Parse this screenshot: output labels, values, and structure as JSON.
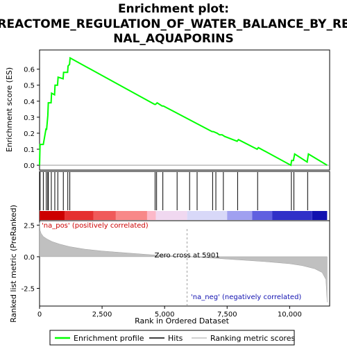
{
  "title_line1": "Enrichment plot:",
  "title_line2": "REACTOME_REGULATION_OF_WATER_BALANCE_BY_RE",
  "title_line3": "NAL_AQUAPORINS",
  "chart_data": [
    {
      "type": "line",
      "name": "enrichment-profile-panel",
      "ylabel": "Enrichment score (ES)",
      "ylim": [
        -0.03,
        0.72
      ],
      "yticks": [
        0.0,
        0.1,
        0.2,
        0.3,
        0.4,
        0.5,
        0.6
      ],
      "ytick_labels": [
        "0.0",
        "0.1",
        "0.2",
        "0.3",
        "0.4",
        "0.5",
        "0.6"
      ],
      "xlim": [
        0,
        11600
      ],
      "series": [
        {
          "name": "Enrichment profile",
          "color": "#00ff00",
          "x": [
            0,
            20,
            60,
            150,
            260,
            280,
            330,
            350,
            460,
            480,
            600,
            620,
            720,
            740,
            940,
            960,
            1120,
            1140,
            1200,
            1220,
            4600,
            4640,
            4700,
            4900,
            4950,
            6900,
            6950,
            7100,
            7200,
            7300,
            7400,
            7900,
            7950,
            8700,
            8750,
            10050,
            10080,
            10150,
            10200,
            10700,
            10750,
            11500
          ],
          "y": [
            0.0,
            0.13,
            0.13,
            0.13,
            0.23,
            0.22,
            0.31,
            0.39,
            0.39,
            0.45,
            0.44,
            0.5,
            0.5,
            0.55,
            0.54,
            0.58,
            0.58,
            0.62,
            0.63,
            0.67,
            0.38,
            0.38,
            0.39,
            0.37,
            0.37,
            0.21,
            0.21,
            0.2,
            0.19,
            0.19,
            0.18,
            0.15,
            0.16,
            0.1,
            0.11,
            0.0,
            0.03,
            0.03,
            0.07,
            0.02,
            0.07,
            0.0
          ]
        }
      ]
    },
    {
      "type": "hits",
      "name": "hits-panel",
      "hit_positions": [
        20,
        150,
        270,
        330,
        350,
        470,
        610,
        730,
        950,
        1130,
        1210,
        4620,
        4680,
        4930,
        5500,
        6000,
        6300,
        6920,
        7050,
        7350,
        7920,
        8720,
        10070,
        10170,
        10720
      ]
    },
    {
      "type": "heatmap",
      "name": "ranking-colorbar",
      "colors": [
        "#cc0000",
        "#e53030",
        "#f05a5a",
        "#f88888",
        "#fcb8c8",
        "#f0d8f0",
        "#d8d8f8",
        "#a0a0f0",
        "#6060e0",
        "#3030c8",
        "#1010b0"
      ],
      "breaks": [
        0,
        1000,
        2150,
        3050,
        4300,
        4650,
        5900,
        7500,
        8500,
        9300,
        10900,
        11500
      ]
    },
    {
      "type": "area",
      "name": "ranked-metric-panel",
      "ylabel": "Ranked list metric (PreRanked)",
      "xlabel": "Rank in Ordered Dataset",
      "ylim": [
        -3.9,
        2.85
      ],
      "yticks": [
        2.5,
        0.0,
        -2.5
      ],
      "ytick_labels": [
        "2.5",
        "0.0",
        "-2.5"
      ],
      "xlim": [
        0,
        11600
      ],
      "xticks": [
        0,
        2500,
        5000,
        7500,
        10000
      ],
      "xtick_labels": [
        "0",
        "2,500",
        "5,000",
        "7,500",
        "10,000"
      ],
      "zero_cross": 5901,
      "zero_cross_label": "Zero cross at 5901",
      "pos_label": "'na_pos' (positively correlated)",
      "neg_label": "'na_neg' (negatively correlated)",
      "series": [
        {
          "name": "Ranking metric scores",
          "color": "#c0c0c0",
          "x": [
            0,
            20,
            60,
            150,
            300,
            500,
            800,
            1200,
            1800,
            2500,
            3500,
            4500,
            5901,
            7000,
            8000,
            9000,
            10000,
            10500,
            11000,
            11300,
            11450,
            11500
          ],
          "y": [
            2.7,
            2.1,
            1.85,
            1.6,
            1.4,
            1.2,
            1.0,
            0.8,
            0.6,
            0.45,
            0.3,
            0.15,
            0.0,
            -0.12,
            -0.25,
            -0.38,
            -0.55,
            -0.7,
            -0.95,
            -1.25,
            -1.8,
            -3.6
          ]
        }
      ]
    }
  ],
  "legend": {
    "items": [
      {
        "label": "Enrichment profile",
        "color": "#00ff00"
      },
      {
        "label": "Hits",
        "color": "#000000"
      },
      {
        "label": "Ranking metric scores",
        "color": "#c0c0c0"
      }
    ]
  }
}
